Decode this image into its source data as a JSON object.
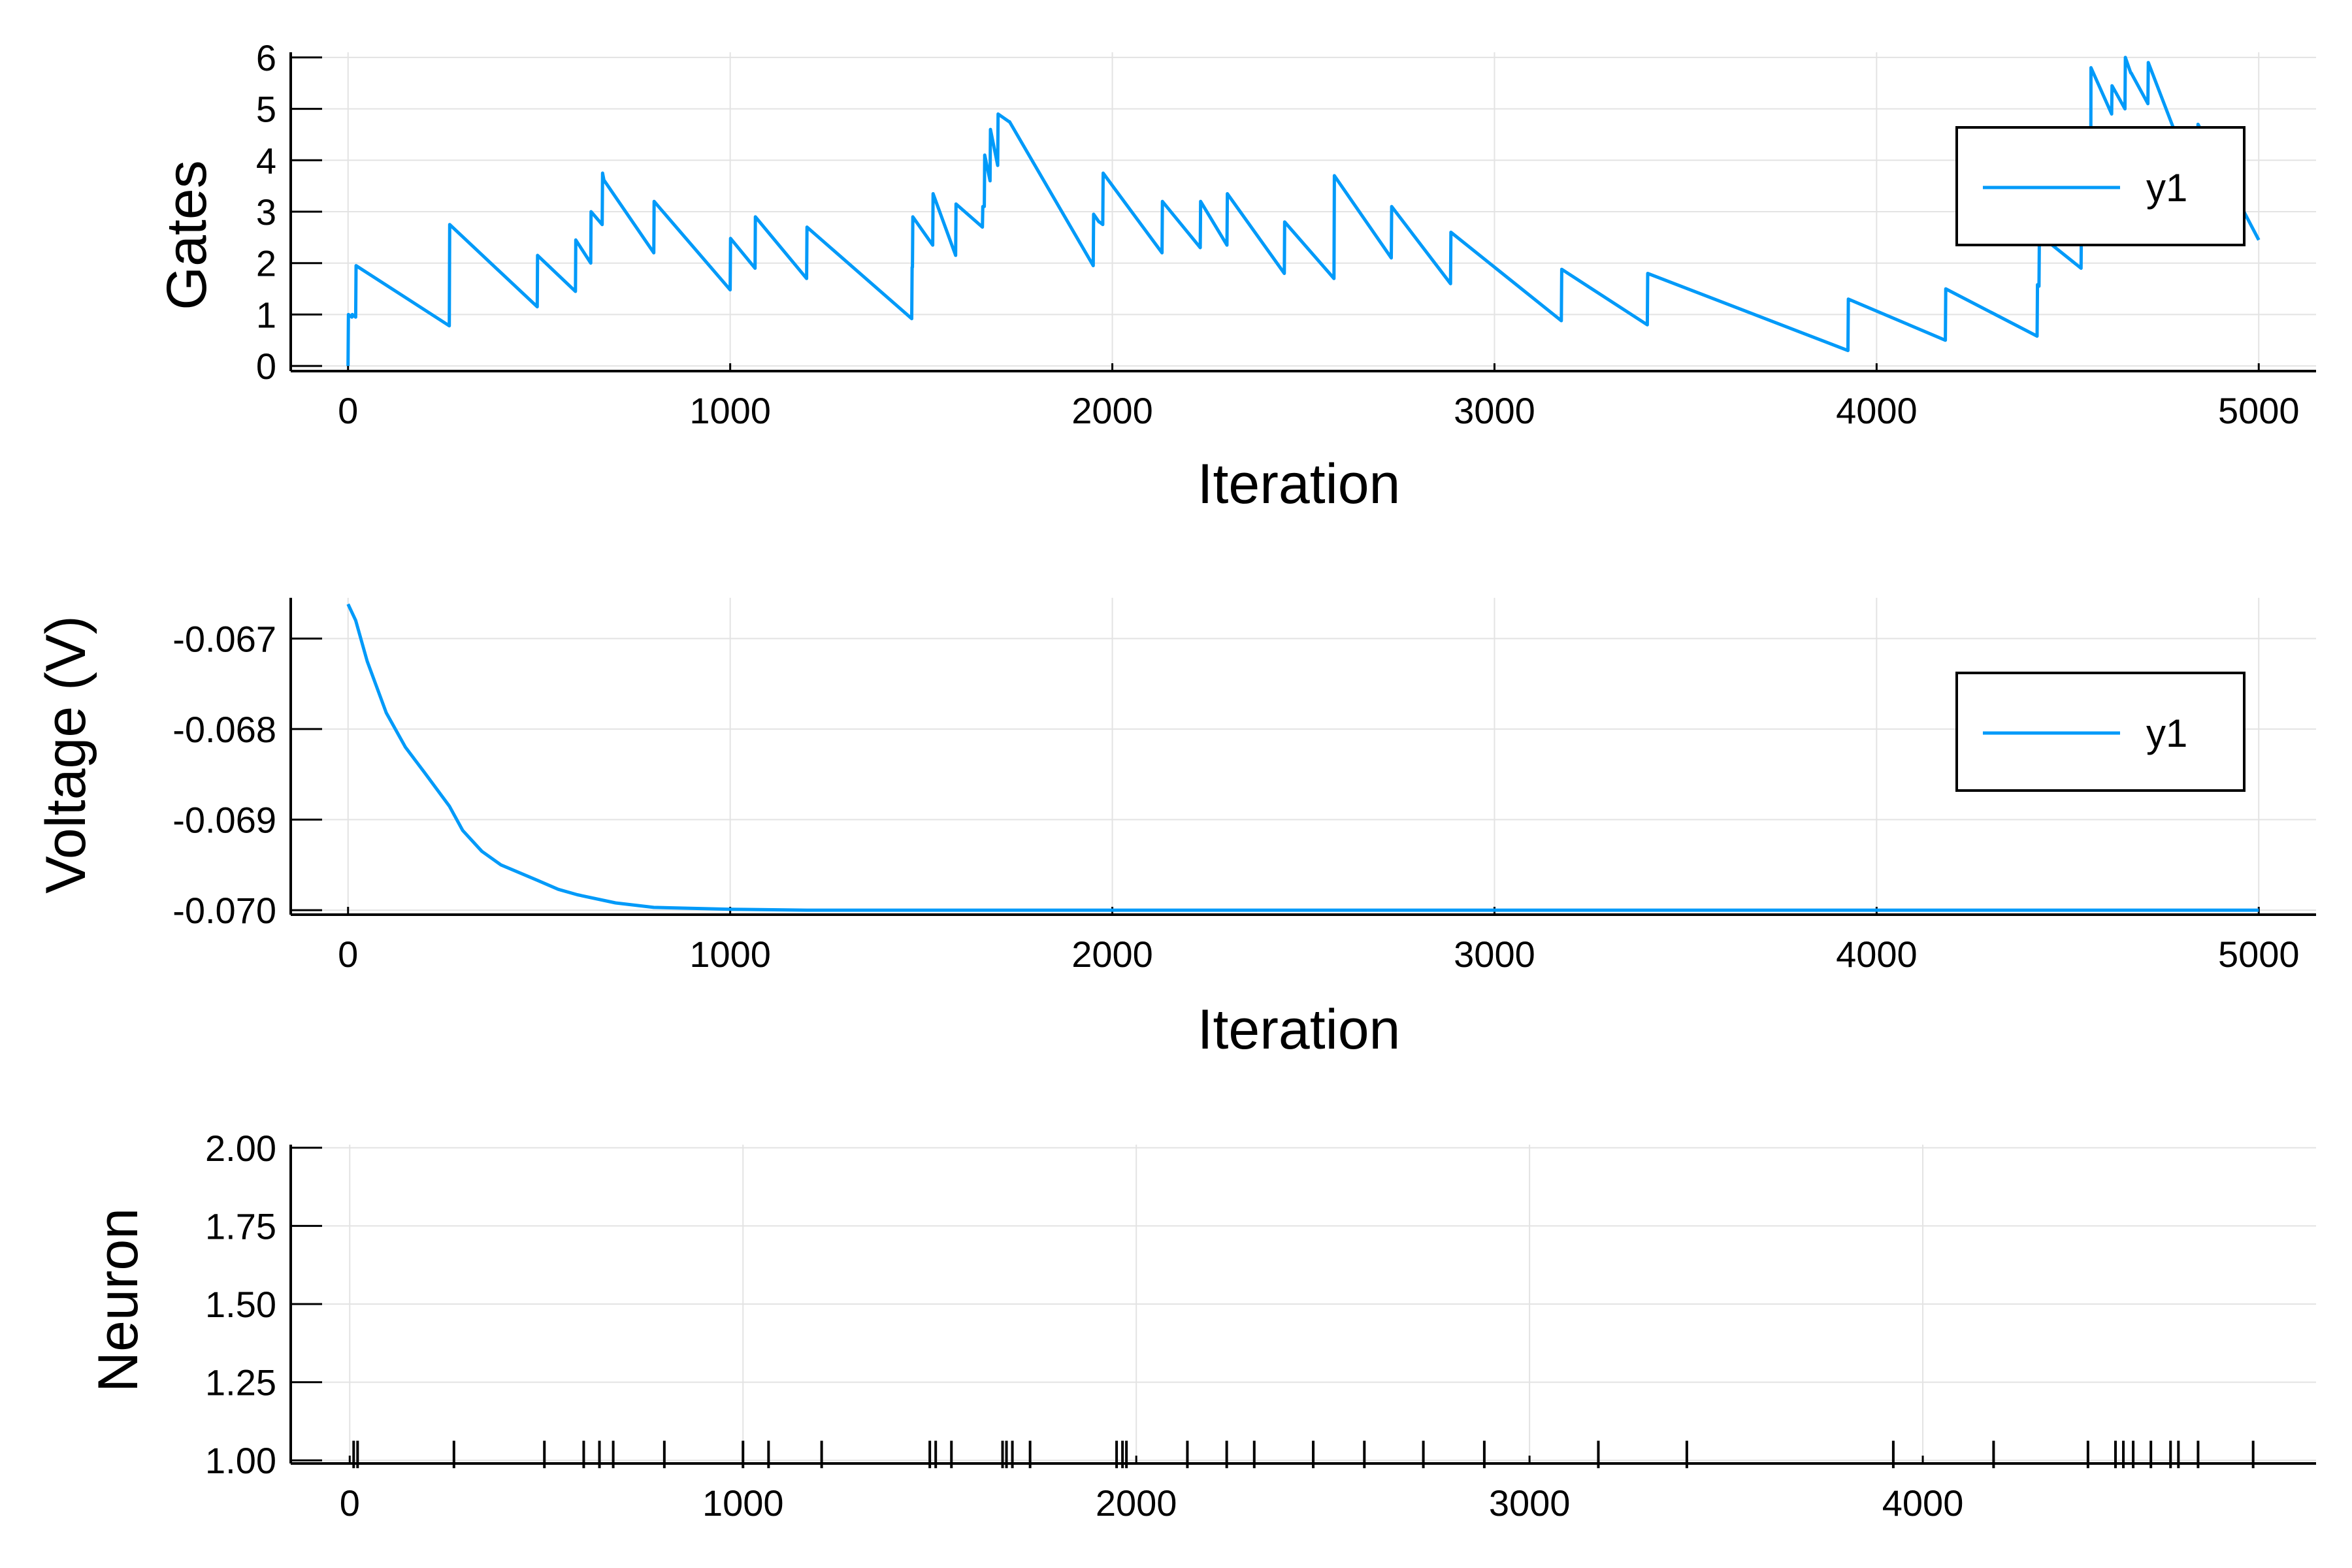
{
  "chart_data": [
    {
      "type": "line",
      "xlabel": "Iteration",
      "ylabel": "Gates",
      "xlim": [
        -150,
        5150
      ],
      "ylim": [
        -0.1,
        6.1
      ],
      "xticks": [
        0,
        1000,
        2000,
        3000,
        4000,
        5000
      ],
      "xtick_labels": [
        "0",
        "1000",
        "2000",
        "3000",
        "4000",
        "5000"
      ],
      "yticks": [
        0,
        1,
        2,
        3,
        4,
        5,
        6
      ],
      "ytick_labels": [
        "0",
        "1",
        "2",
        "3",
        "4",
        "5",
        "6"
      ],
      "grid": true,
      "legend_position": "top-right",
      "series": [
        {
          "name": "y1",
          "color": "#009AF9",
          "x": [
            0,
            1,
            10,
            11,
            20,
            21,
            265,
            266,
            495,
            496,
            595,
            596,
            635,
            636,
            665,
            666,
            670,
            671,
            800,
            801,
            1000,
            1001,
            1065,
            1066,
            1200,
            1201,
            1475,
            1476,
            1477,
            1478,
            1530,
            1531,
            1590,
            1591,
            1660,
            1661,
            1665,
            1666,
            1680,
            1681,
            1700,
            1701,
            1730,
            1731,
            1950,
            1951,
            1965,
            1966,
            1975,
            1976,
            2130,
            2131,
            2230,
            2231,
            2300,
            2301,
            2450,
            2451,
            2580,
            2581,
            2730,
            2731,
            2885,
            2886,
            3175,
            3176,
            3400,
            3401,
            3925,
            3926,
            4180,
            4181,
            4420,
            4421,
            4425,
            4426,
            4535,
            4536,
            4560,
            4561,
            4615,
            4616,
            4650,
            4651,
            4665,
            4666,
            4710,
            4711,
            4840,
            4841,
            5000
          ],
          "y": [
            0,
            1.0,
            0.95,
            1.0,
            0.95,
            1.95,
            0.78,
            2.75,
            1.15,
            2.15,
            1.45,
            2.45,
            2.0,
            3.0,
            2.75,
            3.75,
            3.6,
            3.6,
            2.2,
            3.2,
            1.48,
            2.48,
            1.9,
            2.9,
            1.7,
            2.7,
            0.92,
            1.92,
            1.92,
            2.9,
            2.35,
            3.35,
            2.15,
            3.15,
            2.7,
            3.1,
            3.1,
            4.1,
            3.6,
            4.6,
            3.9,
            4.9,
            4.75,
            4.75,
            1.95,
            2.95,
            2.8,
            2.8,
            2.75,
            3.75,
            2.2,
            3.2,
            2.3,
            3.2,
            2.35,
            3.35,
            1.8,
            2.8,
            1.7,
            3.7,
            2.1,
            3.1,
            1.6,
            2.6,
            0.88,
            1.88,
            0.8,
            1.8,
            0.3,
            1.3,
            0.5,
            1.5,
            0.58,
            1.58,
            1.55,
            2.55,
            1.9,
            2.9,
            2.8,
            5.8,
            4.9,
            5.45,
            5.0,
            6.0,
            5.7,
            5.7,
            5.1,
            5.9,
            3.4,
            4.7,
            2.45
          ]
        }
      ]
    },
    {
      "type": "line",
      "xlabel": "Iteration",
      "ylabel": "Voltage (V)",
      "xlim": [
        -150,
        5150
      ],
      "ylim": [
        -0.07005,
        -0.06655
      ],
      "xticks": [
        0,
        1000,
        2000,
        3000,
        4000,
        5000
      ],
      "xtick_labels": [
        "0",
        "1000",
        "2000",
        "3000",
        "4000",
        "5000"
      ],
      "yticks": [
        -0.067,
        -0.068,
        -0.069,
        -0.07
      ],
      "ytick_labels": [
        "-0.067",
        "-0.068",
        "-0.069",
        "-0.070"
      ],
      "grid": true,
      "legend_position": "top-right",
      "series": [
        {
          "name": "y1",
          "color": "#009AF9",
          "x": [
            0,
            20,
            50,
            100,
            150,
            200,
            265,
            300,
            350,
            400,
            495,
            550,
            600,
            700,
            800,
            1000,
            1200,
            1500,
            5000
          ],
          "y": [
            -0.06662,
            -0.0668,
            -0.06725,
            -0.06782,
            -0.0682,
            -0.06848,
            -0.06885,
            -0.06912,
            -0.06935,
            -0.0695,
            -0.06967,
            -0.06977,
            -0.06983,
            -0.06992,
            -0.06997,
            -0.06999,
            -0.07,
            -0.07,
            -0.07
          ]
        }
      ]
    },
    {
      "type": "scatter",
      "xlabel": "",
      "ylabel": "Neuron",
      "xlim": [
        -150,
        5000
      ],
      "ylim": [
        0.99,
        2.01
      ],
      "xticks": [
        0,
        1000,
        2000,
        3000,
        4000
      ],
      "xtick_labels": [
        "0",
        "1000",
        "2000",
        "3000",
        "4000"
      ],
      "yticks": [
        1.0,
        1.25,
        1.5,
        1.75,
        2.0
      ],
      "ytick_labels": [
        "1.00",
        "1.25",
        "1.50",
        "1.75",
        "2.00"
      ],
      "grid": true,
      "marker": "vertical-line",
      "spikes": {
        "x": [
          10,
          20,
          265,
          495,
          595,
          635,
          670,
          800,
          1000,
          1065,
          1200,
          1475,
          1490,
          1530,
          1660,
          1670,
          1685,
          1730,
          1950,
          1965,
          1975,
          2130,
          2230,
          2300,
          2450,
          2580,
          2730,
          2885,
          3175,
          3400,
          3925,
          4180,
          4420,
          4490,
          4510,
          4535,
          4580,
          4630,
          4650,
          4700,
          4840
        ],
        "y": [
          1,
          1,
          1,
          1,
          1,
          1,
          1,
          1,
          1,
          1,
          1,
          1,
          1,
          1,
          1,
          1,
          1,
          1,
          1,
          1,
          1,
          1,
          1,
          1,
          1,
          1,
          1,
          1,
          1,
          1,
          1,
          1,
          1,
          1,
          1,
          1,
          1,
          1,
          1,
          1,
          1
        ]
      }
    }
  ]
}
